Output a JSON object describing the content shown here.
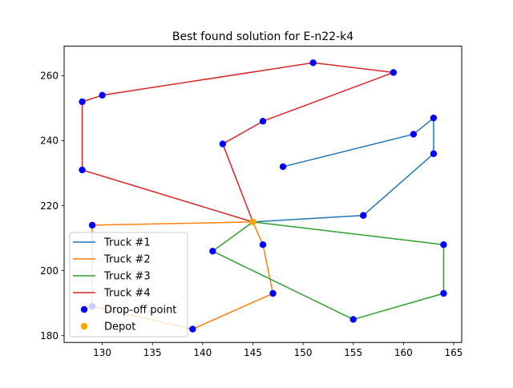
{
  "chart_data": {
    "type": "scatter",
    "title": "Best found solution for E-n22-k4",
    "xlabel": "",
    "ylabel": "",
    "xlim": [
      126.2,
      165.8
    ],
    "ylim": [
      177.9,
      269.1
    ],
    "x_ticks": [
      130,
      135,
      140,
      145,
      150,
      155,
      160,
      165
    ],
    "y_ticks": [
      180,
      200,
      220,
      240,
      260
    ],
    "grid": false,
    "legend_position": "lower-left",
    "depot": {
      "x": 145,
      "y": 215
    },
    "drop_off_points": [
      {
        "x": 151,
        "y": 264
      },
      {
        "x": 159,
        "y": 261
      },
      {
        "x": 130,
        "y": 254
      },
      {
        "x": 128,
        "y": 252
      },
      {
        "x": 163,
        "y": 247
      },
      {
        "x": 146,
        "y": 246
      },
      {
        "x": 161,
        "y": 242
      },
      {
        "x": 142,
        "y": 239
      },
      {
        "x": 163,
        "y": 236
      },
      {
        "x": 148,
        "y": 232
      },
      {
        "x": 128,
        "y": 231
      },
      {
        "x": 156,
        "y": 217
      },
      {
        "x": 129,
        "y": 214
      },
      {
        "x": 146,
        "y": 208
      },
      {
        "x": 164,
        "y": 208
      },
      {
        "x": 141,
        "y": 206
      },
      {
        "x": 147,
        "y": 193
      },
      {
        "x": 164,
        "y": 193
      },
      {
        "x": 129,
        "y": 189
      },
      {
        "x": 155,
        "y": 185
      },
      {
        "x": 139,
        "y": 182
      }
    ],
    "series": [
      {
        "name": "Truck #1",
        "color": "#1f77b4",
        "x": [
          145,
          156,
          163,
          163,
          161,
          148
        ],
        "y": [
          215,
          217,
          236,
          247,
          242,
          232
        ]
      },
      {
        "name": "Truck #2",
        "color": "#ff7f0e",
        "x": [
          145,
          129,
          129,
          139,
          147,
          146,
          145
        ],
        "y": [
          215,
          214,
          189,
          182,
          193,
          208,
          215
        ]
      },
      {
        "name": "Truck #3",
        "color": "#2ca02c",
        "x": [
          145,
          164,
          164,
          155,
          141,
          145
        ],
        "y": [
          215,
          208,
          193,
          185,
          206,
          215
        ]
      },
      {
        "name": "Truck #4",
        "color": "#d62728",
        "x": [
          145,
          128,
          128,
          130,
          151,
          159,
          146,
          142,
          145
        ],
        "y": [
          215,
          231,
          252,
          254,
          264,
          261,
          246,
          239,
          215
        ]
      }
    ],
    "point_series": [
      {
        "name": "Drop-off point",
        "color": "#0000ff"
      },
      {
        "name": "Depot",
        "color": "#ffa500"
      }
    ]
  }
}
